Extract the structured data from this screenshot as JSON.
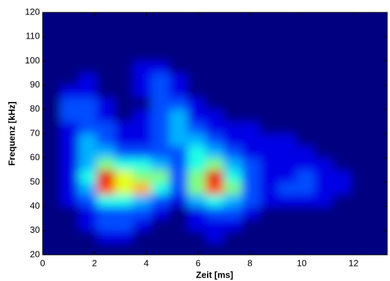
{
  "chart_data": {
    "type": "heatmap",
    "xlabel": "Zeit [ms]",
    "ylabel": "Frequenz [kHz]",
    "xlim": [
      0,
      13.3
    ],
    "ylim": [
      20,
      120
    ],
    "xticks": [
      0,
      2,
      4,
      6,
      8,
      10,
      12
    ],
    "yticks": [
      20,
      30,
      40,
      50,
      60,
      70,
      80,
      90,
      100,
      110,
      120
    ],
    "colormap": "jet",
    "clim": [
      0,
      10
    ],
    "xbins": [
      0,
      0.7,
      1.4,
      2.1,
      2.8,
      3.5,
      4.2,
      4.9,
      5.6,
      6.3,
      7,
      7.7,
      8.4,
      9.1,
      9.8,
      10.5,
      11.2,
      11.9,
      12.6,
      13.3
    ],
    "ybins": [
      20,
      25,
      30,
      35,
      40,
      45,
      50,
      55,
      60,
      65,
      70,
      75,
      80,
      85,
      90,
      95,
      100,
      105,
      110,
      115,
      120
    ],
    "z": [
      [
        0,
        0,
        0,
        0,
        0,
        0,
        0,
        0,
        0,
        0,
        0,
        0,
        0,
        0,
        0,
        0,
        0,
        0,
        0
      ],
      [
        0,
        0,
        0,
        1,
        1,
        0,
        0,
        0,
        0,
        1,
        0,
        0,
        0,
        0,
        0,
        0,
        0,
        0,
        0
      ],
      [
        0,
        0,
        1,
        2,
        2,
        1,
        0,
        0,
        1,
        1,
        1,
        0,
        0,
        0,
        0,
        0,
        0,
        0,
        0
      ],
      [
        0,
        0,
        1,
        2,
        2,
        2,
        1,
        0,
        1,
        2,
        2,
        1,
        0,
        0,
        0,
        0,
        0,
        0,
        0
      ],
      [
        0,
        1,
        2,
        4,
        4,
        3,
        2,
        1,
        3,
        4,
        3,
        2,
        1,
        1,
        1,
        1,
        0,
        0,
        0
      ],
      [
        0,
        1,
        3,
        8,
        6,
        7,
        4,
        2,
        5,
        8,
        5,
        2,
        1,
        2,
        2,
        1,
        1,
        0,
        0
      ],
      [
        0,
        1,
        4,
        9,
        6,
        5,
        5,
        2,
        5,
        9,
        4,
        2,
        1,
        1,
        2,
        1,
        1,
        0,
        0
      ],
      [
        0,
        1,
        3,
        5,
        4,
        4,
        3,
        2,
        4,
        5,
        3,
        2,
        1,
        1,
        1,
        1,
        0,
        0,
        0
      ],
      [
        0,
        1,
        3,
        3,
        2,
        2,
        2,
        2,
        4,
        3,
        2,
        1,
        1,
        1,
        1,
        0,
        0,
        0,
        0
      ],
      [
        0,
        1,
        3,
        2,
        1,
        1,
        2,
        3,
        3,
        2,
        1,
        1,
        1,
        1,
        0,
        0,
        0,
        0,
        0
      ],
      [
        0,
        1,
        2,
        2,
        1,
        1,
        2,
        3,
        2,
        1,
        1,
        1,
        0,
        0,
        0,
        0,
        0,
        0,
        0
      ],
      [
        0,
        2,
        2,
        1,
        0,
        1,
        2,
        3,
        1,
        1,
        0,
        0,
        0,
        0,
        0,
        0,
        0,
        0,
        0
      ],
      [
        0,
        2,
        2,
        1,
        0,
        0,
        2,
        2,
        1,
        0,
        0,
        0,
        0,
        0,
        0,
        0,
        0,
        0,
        0
      ],
      [
        0,
        1,
        1,
        0,
        0,
        1,
        2,
        1,
        0,
        0,
        0,
        0,
        0,
        0,
        0,
        0,
        0,
        0,
        0
      ],
      [
        0,
        0,
        1,
        0,
        0,
        1,
        2,
        1,
        0,
        0,
        0,
        0,
        0,
        0,
        0,
        0,
        0,
        0,
        0
      ],
      [
        0,
        0,
        0,
        0,
        0,
        1,
        1,
        0,
        0,
        0,
        0,
        0,
        0,
        0,
        0,
        0,
        0,
        0,
        0
      ],
      [
        0,
        0,
        0,
        0,
        0,
        0,
        0,
        0,
        0,
        0,
        0,
        0,
        0,
        0,
        0,
        0,
        0,
        0,
        0
      ],
      [
        0,
        0,
        0,
        0,
        0,
        0,
        0,
        0,
        0,
        0,
        0,
        0,
        0,
        0,
        0,
        0,
        0,
        0,
        0
      ],
      [
        0,
        0,
        0,
        0,
        0,
        0,
        0,
        0,
        0,
        0,
        0,
        0,
        0,
        0,
        0,
        0,
        0,
        0,
        0
      ],
      [
        0,
        0,
        0,
        0,
        0,
        0,
        0,
        0,
        0,
        0,
        0,
        0,
        0,
        0,
        0,
        0,
        0,
        0,
        0
      ]
    ]
  }
}
